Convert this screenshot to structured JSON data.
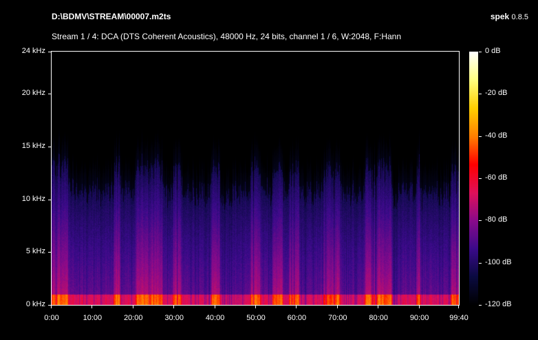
{
  "header": {
    "file_title": "D:\\BDMV\\STREAM\\00007.m2ts",
    "stream_info": "Stream 1 / 4: DCA (DTS Coherent Acoustics), 48000 Hz, 24 bits, channel 1 / 6, W:2048, F:Hann",
    "app_name": "spek",
    "app_version": "0.8.5"
  },
  "chart_data": {
    "type": "heatmap",
    "title": "",
    "x_axis": {
      "unit": "minutes",
      "range": [
        0,
        99.667
      ],
      "ticks": [
        {
          "value": 0,
          "label": "0:00"
        },
        {
          "value": 10,
          "label": "10:00"
        },
        {
          "value": 20,
          "label": "20:00"
        },
        {
          "value": 30,
          "label": "30:00"
        },
        {
          "value": 40,
          "label": "40:00"
        },
        {
          "value": 50,
          "label": "50:00"
        },
        {
          "value": 60,
          "label": "60:00"
        },
        {
          "value": 70,
          "label": "70:00"
        },
        {
          "value": 80,
          "label": "80:00"
        },
        {
          "value": 90,
          "label": "90:00"
        },
        {
          "value": 99.667,
          "label": "99:40"
        }
      ]
    },
    "y_axis": {
      "unit": "kHz",
      "range": [
        0,
        24
      ],
      "ticks": [
        {
          "value": 0,
          "label": "0 kHz"
        },
        {
          "value": 5,
          "label": "5 kHz"
        },
        {
          "value": 10,
          "label": "10 kHz"
        },
        {
          "value": 15,
          "label": "15 kHz"
        },
        {
          "value": 20,
          "label": "20 kHz"
        },
        {
          "value": 24,
          "label": "24 kHz"
        }
      ]
    },
    "color_scale": {
      "unit": "dB",
      "range": [
        -120,
        0
      ],
      "ticks": [
        {
          "value": 0,
          "label": "0 dB"
        },
        {
          "value": -20,
          "label": "-20 dB"
        },
        {
          "value": -40,
          "label": "-40 dB"
        },
        {
          "value": -60,
          "label": "-60 dB"
        },
        {
          "value": -80,
          "label": "-80 dB"
        },
        {
          "value": -100,
          "label": "-100 dB"
        },
        {
          "value": -120,
          "label": "-120 dB"
        }
      ],
      "colors": [
        "#000000",
        "#0a0a40",
        "#3a0a8a",
        "#8a0a8a",
        "#e0105a",
        "#ff0000",
        "#ff8000",
        "#ffd000",
        "#ffff80",
        "#ffffff"
      ]
    },
    "approx_max_frequency_khz": 13,
    "louder_segments_min": [
      [
        0,
        4
      ],
      [
        15,
        16.5
      ],
      [
        20.5,
        27
      ],
      [
        29.5,
        31.5
      ],
      [
        39,
        41
      ],
      [
        48.5,
        51
      ],
      [
        54,
        56.5
      ],
      [
        58,
        60.5
      ],
      [
        66,
        70.5
      ],
      [
        76.5,
        83
      ],
      [
        89,
        90
      ],
      [
        97.5,
        99.5
      ]
    ]
  }
}
